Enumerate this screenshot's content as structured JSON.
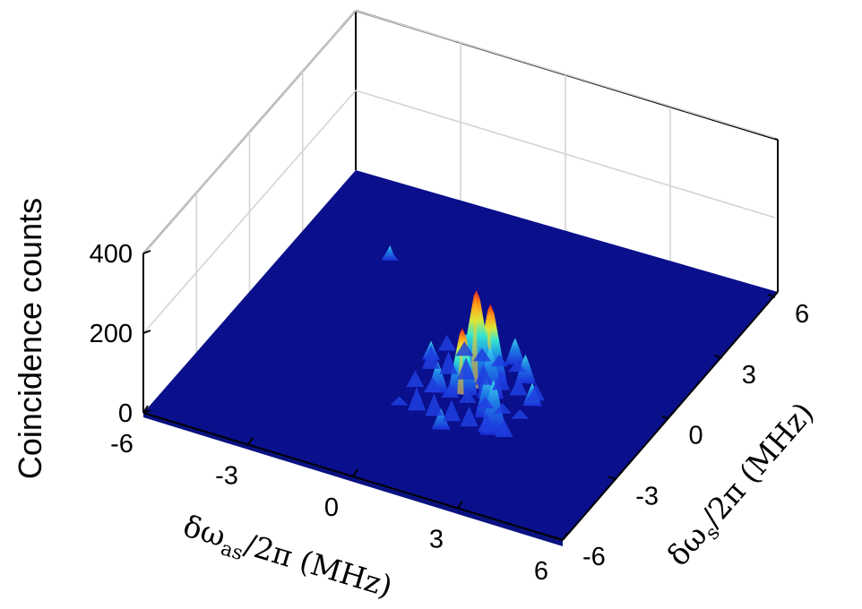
{
  "chart_data": {
    "type": "surface3d",
    "zlabel": "Coincidence counts",
    "xlabel": {
      "delta": "δω",
      "sub": "as",
      "rest": "/2π (MHz)"
    },
    "ylabel": {
      "delta": "δω",
      "sub": "s",
      "rest": "/2π (MHz)"
    },
    "x_ticks": [
      "-6",
      "-3",
      "0",
      "3",
      "6"
    ],
    "y_ticks": [
      "-3",
      "0",
      "3",
      "6",
      "-6"
    ],
    "z_ticks": [
      "0",
      "200",
      "400"
    ],
    "xlim": [
      -6,
      6
    ],
    "ylim": [
      -6,
      6
    ],
    "zlim": [
      0,
      400
    ],
    "colormap": "jet",
    "floor_color": "#0a0f8c",
    "grid": true,
    "peak": {
      "delta_omega_as_MHz": 1.0,
      "delta_omega_s_MHz": -1.0,
      "coincidence_counts": 240
    },
    "spikes": [
      {
        "x": 1.0,
        "y": -1.0,
        "z": 240
      },
      {
        "x": 1.2,
        "y": -0.6,
        "z": 190
      },
      {
        "x": 0.8,
        "y": -1.4,
        "z": 160
      },
      {
        "x": 1.5,
        "y": -1.2,
        "z": 120
      },
      {
        "x": 0.6,
        "y": -0.8,
        "z": 110
      },
      {
        "x": 1.8,
        "y": -2.0,
        "z": 95
      },
      {
        "x": 2.3,
        "y": -2.6,
        "z": 130
      },
      {
        "x": 0.2,
        "y": -1.6,
        "z": 70
      },
      {
        "x": 1.4,
        "y": 0.4,
        "z": 60
      },
      {
        "x": 2.0,
        "y": -0.2,
        "z": 65
      },
      {
        "x": -0.6,
        "y": -0.4,
        "z": 40
      },
      {
        "x": 0.4,
        "y": 0.8,
        "z": 55
      },
      {
        "x": 2.6,
        "y": -1.0,
        "z": 50
      },
      {
        "x": -3.5,
        "y": 3.0,
        "z": 30
      },
      {
        "x": 1.0,
        "y": -3.0,
        "z": 45
      }
    ]
  }
}
